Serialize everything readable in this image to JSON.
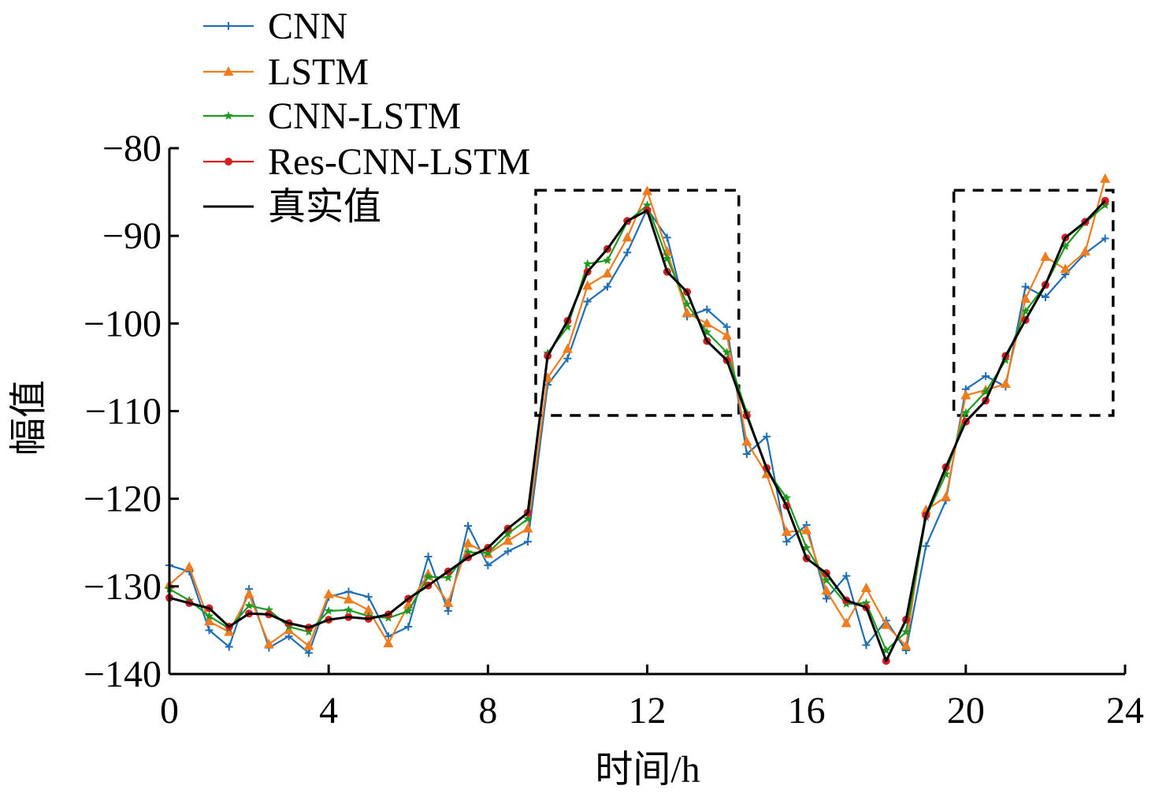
{
  "chart_data": {
    "type": "line",
    "xlabel": "时间/h",
    "ylabel": "幅值",
    "xlim": [
      0,
      24
    ],
    "ylim": [
      -140,
      -80
    ],
    "xticks": [
      "0",
      "4",
      "8",
      "12",
      "16",
      "20",
      "24"
    ],
    "xtick_values": [
      0,
      4,
      8,
      12,
      16,
      20,
      24
    ],
    "yticks": [
      "−80",
      "−90",
      "−100",
      "−110",
      "−120",
      "−130",
      "−140"
    ],
    "ytick_values": [
      -80,
      -90,
      -100,
      -110,
      -120,
      -130,
      -140
    ],
    "grid": false,
    "legend_position": "top-left",
    "x": [
      0,
      0.5,
      1,
      1.5,
      2,
      2.5,
      3,
      3.5,
      4,
      4.5,
      5,
      5.5,
      6,
      6.5,
      7,
      7.5,
      8,
      8.5,
      9,
      9.5,
      10,
      10.5,
      11,
      11.5,
      12,
      12.5,
      13,
      13.5,
      14,
      14.5,
      15,
      15.5,
      16,
      16.5,
      17,
      17.5,
      18,
      18.5,
      19,
      19.5,
      20,
      20.5,
      21,
      21.5,
      22,
      22.5,
      23,
      23.5
    ],
    "series": [
      {
        "name": "CNN",
        "color": "#1f6fb4",
        "marker": "plus",
        "values": [
          -127.6,
          -128.3,
          -135.0,
          -136.9,
          -130.3,
          -137.0,
          -135.7,
          -137.6,
          -131.2,
          -130.6,
          -131.2,
          -135.7,
          -134.6,
          -126.6,
          -132.8,
          -123.1,
          -127.6,
          -126.0,
          -124.9,
          -107.0,
          -104.0,
          -97.5,
          -95.8,
          -91.9,
          -86.9,
          -90.2,
          -99.2,
          -98.4,
          -100.4,
          -114.9,
          -112.9,
          -124.9,
          -123.0,
          -131.4,
          -128.8,
          -136.7,
          -133.9,
          -137.3,
          -125.4,
          -120.2,
          -107.5,
          -106.0,
          -107.2,
          -95.8,
          -97.0,
          -94.4,
          -92.0,
          -90.3
        ]
      },
      {
        "name": "LSTM",
        "color": "#f07c1e",
        "marker": "triangle",
        "values": [
          -129.8,
          -127.8,
          -134.0,
          -135.2,
          -130.9,
          -136.6,
          -135.0,
          -136.8,
          -130.9,
          -131.5,
          -132.7,
          -136.5,
          -132.1,
          -128.6,
          -131.9,
          -125.1,
          -126.3,
          -124.8,
          -123.4,
          -106.2,
          -102.9,
          -95.7,
          -94.3,
          -90.2,
          -84.9,
          -91.8,
          -98.8,
          -100.0,
          -101.4,
          -113.5,
          -117.2,
          -123.8,
          -123.6,
          -130.5,
          -134.2,
          -130.2,
          -134.4,
          -136.8,
          -121.3,
          -119.8,
          -108.2,
          -107.6,
          -106.9,
          -97.2,
          -92.4,
          -93.8,
          -91.8,
          -83.5
        ]
      },
      {
        "name": "CNN-LSTM",
        "color": "#1e9a1e",
        "marker": "star",
        "values": [
          -130.3,
          -131.6,
          -133.4,
          -134.8,
          -132.2,
          -132.7,
          -134.6,
          -135.2,
          -132.8,
          -132.7,
          -133.4,
          -133.6,
          -132.8,
          -128.9,
          -129.0,
          -126.1,
          -126.2,
          -124.0,
          -122.3,
          -103.4,
          -100.4,
          -93.2,
          -92.8,
          -88.4,
          -86.5,
          -92.6,
          -97.8,
          -101.0,
          -103.3,
          -110.2,
          -116.7,
          -119.9,
          -125.6,
          -129.3,
          -132.0,
          -131.9,
          -137.3,
          -135.2,
          -122.1,
          -117.2,
          -110.2,
          -107.8,
          -104.2,
          -98.6,
          -95.6,
          -91.2,
          -88.5,
          -86.5
        ]
      },
      {
        "name": "Res-CNN-LSTM",
        "color": "#d62020",
        "marker": "circle",
        "values": [
          -131.3,
          -131.9,
          -132.5,
          -134.6,
          -133.1,
          -133.2,
          -134.2,
          -134.7,
          -133.8,
          -133.5,
          -133.7,
          -133.2,
          -131.4,
          -129.9,
          -128.3,
          -126.7,
          -125.6,
          -123.4,
          -121.6,
          -103.7,
          -99.7,
          -94.1,
          -91.5,
          -88.3,
          -87.1,
          -94.1,
          -96.4,
          -102.0,
          -104.2,
          -110.5,
          -116.5,
          -120.8,
          -126.8,
          -128.5,
          -131.6,
          -132.4,
          -138.5,
          -133.8,
          -121.9,
          -116.4,
          -111.2,
          -108.8,
          -103.7,
          -99.6,
          -95.6,
          -90.2,
          -88.4,
          -86.0
        ]
      },
      {
        "name": "真实值",
        "color": "#000000",
        "marker": "none",
        "values": [
          -131.3,
          -131.9,
          -132.5,
          -134.6,
          -133.1,
          -133.2,
          -134.2,
          -134.7,
          -133.8,
          -133.5,
          -133.7,
          -133.2,
          -131.4,
          -129.9,
          -128.3,
          -126.7,
          -125.6,
          -123.4,
          -121.6,
          -103.7,
          -99.7,
          -94.1,
          -91.5,
          -88.3,
          -87.1,
          -94.1,
          -96.4,
          -102.0,
          -104.2,
          -110.5,
          -116.5,
          -120.8,
          -126.8,
          -128.5,
          -131.6,
          -132.4,
          -138.5,
          -133.8,
          -121.9,
          -116.4,
          -111.2,
          -108.8,
          -103.7,
          -99.6,
          -95.6,
          -90.2,
          -88.4,
          -86.0
        ]
      }
    ],
    "highlight_boxes": [
      {
        "x0": 9.2,
        "x1": 14.3,
        "y0": -110.5,
        "y1": -84.8
      },
      {
        "x0": 19.7,
        "x1": 23.7,
        "y0": -110.5,
        "y1": -84.8
      }
    ]
  }
}
